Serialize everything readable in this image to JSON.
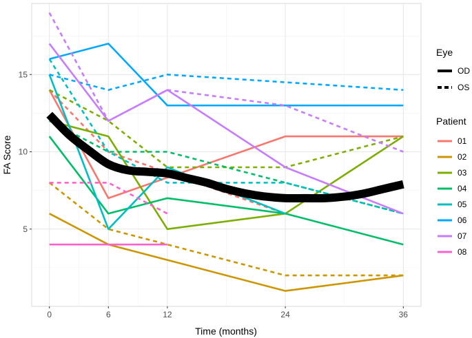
{
  "chart_data": {
    "type": "line",
    "xlabel": "Time (months)",
    "ylabel": "FA Score",
    "x_ticks": [
      0,
      6,
      12,
      24,
      36
    ],
    "y_ticks": [
      5,
      10,
      15
    ],
    "xlim": [
      -1.8,
      37.8
    ],
    "ylim": [
      0,
      19.6
    ],
    "grid": true,
    "legend_placement": "right",
    "eye_legend": {
      "title": "Eye",
      "entries": [
        {
          "label": "OD",
          "linetype": "solid"
        },
        {
          "label": "OS",
          "linetype": "dashed"
        }
      ]
    },
    "patient_legend": {
      "title": "Patient",
      "entries": [
        {
          "label": "01",
          "color": "#F8766D"
        },
        {
          "label": "02",
          "color": "#CD9600"
        },
        {
          "label": "03",
          "color": "#7CAE00"
        },
        {
          "label": "04",
          "color": "#00BE67"
        },
        {
          "label": "05",
          "color": "#00BFC4"
        },
        {
          "label": "06",
          "color": "#00A9FF"
        },
        {
          "label": "07",
          "color": "#C77CFF"
        },
        {
          "label": "08",
          "color": "#FF61CC"
        }
      ]
    },
    "series": [
      {
        "patient": "01",
        "eye": "OD",
        "x": [
          0,
          6,
          24,
          36
        ],
        "y": [
          14,
          7,
          11,
          11
        ]
      },
      {
        "patient": "01",
        "eye": "OS",
        "x": [
          0,
          6,
          24
        ],
        "y": [
          14,
          10,
          6
        ]
      },
      {
        "patient": "02",
        "eye": "OD",
        "x": [
          0,
          6,
          24,
          36
        ],
        "y": [
          6,
          4,
          1,
          2
        ]
      },
      {
        "patient": "02",
        "eye": "OS",
        "x": [
          0,
          6,
          12,
          24,
          36
        ],
        "y": [
          8,
          5,
          4,
          2,
          2
        ]
      },
      {
        "patient": "03",
        "eye": "OD",
        "x": [
          0,
          6,
          12,
          24,
          36
        ],
        "y": [
          12,
          11,
          5,
          6,
          11
        ]
      },
      {
        "patient": "03",
        "eye": "OS",
        "x": [
          0,
          6,
          12,
          24,
          36
        ],
        "y": [
          14,
          12,
          9,
          9,
          11
        ]
      },
      {
        "patient": "04",
        "eye": "OD",
        "x": [
          0,
          6,
          12,
          24,
          36
        ],
        "y": [
          11,
          6,
          7,
          6,
          4
        ]
      },
      {
        "patient": "04",
        "eye": "OS",
        "x": [
          0,
          6,
          12,
          24,
          36
        ],
        "y": [
          12,
          10,
          10,
          8,
          6
        ]
      },
      {
        "patient": "05",
        "eye": "OD",
        "x": [
          0,
          6,
          12,
          24
        ],
        "y": [
          15,
          5,
          9,
          6
        ]
      },
      {
        "patient": "05",
        "eye": "OS",
        "x": [
          0,
          6,
          12,
          24,
          36
        ],
        "y": [
          16,
          10,
          8,
          8,
          6
        ]
      },
      {
        "patient": "06",
        "eye": "OD",
        "x": [
          0,
          6,
          12,
          24,
          36
        ],
        "y": [
          16,
          17,
          13,
          13,
          13
        ]
      },
      {
        "patient": "06",
        "eye": "OS",
        "x": [
          0,
          6,
          12,
          24,
          36
        ],
        "y": [
          15,
          14,
          15,
          14.5,
          14
        ]
      },
      {
        "patient": "07",
        "eye": "OD",
        "x": [
          0,
          6,
          12,
          24,
          36
        ],
        "y": [
          17,
          12,
          14,
          9,
          6
        ]
      },
      {
        "patient": "07",
        "eye": "OS",
        "x": [
          0,
          6,
          12,
          24,
          36
        ],
        "y": [
          19,
          12,
          14,
          13,
          10
        ]
      },
      {
        "patient": "08",
        "eye": "OD",
        "x": [
          0,
          12
        ],
        "y": [
          4,
          4
        ]
      },
      {
        "patient": "08",
        "eye": "OS",
        "x": [
          0,
          6,
          12
        ],
        "y": [
          8,
          8,
          6
        ]
      }
    ],
    "trend": {
      "x": [
        0,
        2,
        4,
        6,
        8,
        10,
        12,
        14,
        16,
        18,
        20,
        22,
        24,
        26,
        28,
        30,
        32,
        34,
        36
      ],
      "y": [
        12.4,
        11.1,
        10.1,
        9.2,
        8.8,
        8.7,
        8.6,
        8.3,
        8.0,
        7.6,
        7.3,
        7.1,
        7.0,
        7.0,
        7.0,
        7.1,
        7.3,
        7.6,
        7.9
      ]
    }
  }
}
